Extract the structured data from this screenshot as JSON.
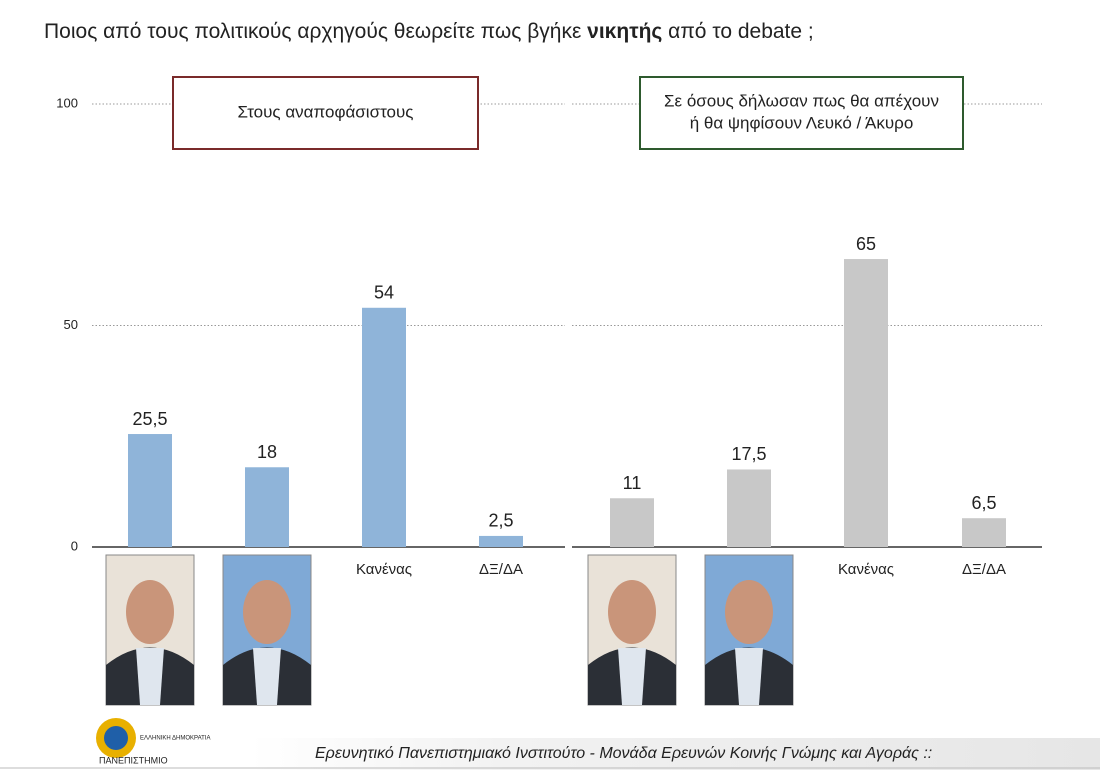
{
  "title": {
    "before": "Ποιος από τους πολιτικούς αρχηγούς θεωρείτε πως βγήκε ",
    "bold": "νικητής",
    "after": " από το debate ;"
  },
  "footer": "Ερευνητικό Πανεπιστημιακό Ινστιτούτο - Μονάδα Ερευνών Κοινής Γνώμης και Αγοράς ::",
  "logo": {
    "top": "ΕΛΛΗΝΙΚΗ ΔΗΜΟΚΡΑΤΙΑ",
    "bottom": "ΠΑΝΕΠΙΣΤΗΜΙΟ"
  },
  "chart_data": [
    {
      "type": "bar",
      "subtitle": [
        "Στους αναποφάσιστους"
      ],
      "box_color": "#7a2a2a",
      "categories": [
        null,
        null,
        "Κανένας",
        "ΔΞ/ΔΑ"
      ],
      "values": [
        25.5,
        18,
        54,
        2.5
      ],
      "value_labels": [
        "25,5",
        "18",
        "54",
        "2,5"
      ],
      "color": "#8fb4d9",
      "ylim": [
        0,
        100
      ],
      "yticks": [
        0,
        50,
        100
      ],
      "show_tick_labels": true,
      "grid": true
    },
    {
      "type": "bar",
      "subtitle": [
        "Σε όσους δήλωσαν πως θα απέχουν",
        "ή θα ψηφίσουν Λευκό / Άκυρο"
      ],
      "box_color": "#2e5a2e",
      "categories": [
        null,
        null,
        "Κανένας",
        "ΔΞ/ΔΑ"
      ],
      "values": [
        11,
        17.5,
        65,
        6.5
      ],
      "value_labels": [
        "11",
        "17,5",
        "65",
        "6,5"
      ],
      "color": "#c8c8c8",
      "ylim": [
        0,
        100
      ],
      "yticks": [
        0,
        50,
        100
      ],
      "show_tick_labels": false,
      "grid": true
    }
  ]
}
